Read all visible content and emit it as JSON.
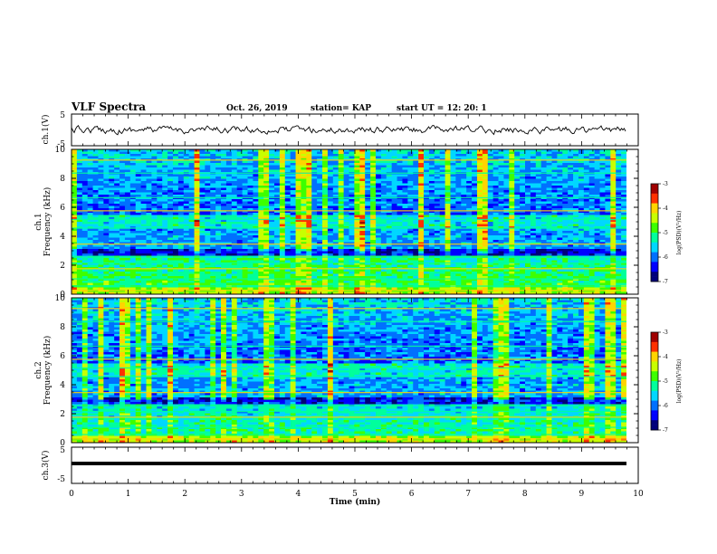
{
  "header": {
    "title": "VLF Spectra",
    "date": "Oct. 26, 2019",
    "station": "station= KAP",
    "start": "start  UT  =   12: 20: 1"
  },
  "colors": {
    "colormap": [
      "#00007a",
      "#0000ff",
      "#0070ff",
      "#00d7ff",
      "#00ff9c",
      "#3cff00",
      "#c8ff00",
      "#ffd400",
      "#ff3000",
      "#a00000"
    ],
    "trace": "#000000"
  },
  "chart_data": [
    {
      "type": "line",
      "name": "ch1-waveform",
      "ylabel": "ch.1(V)",
      "ylim": [
        -5,
        5
      ],
      "yticks": [
        "5",
        "-5"
      ],
      "xlim": [
        0,
        9.8
      ],
      "note_values": "waveform amplitude roughly within ±1.5 V, noisy"
    },
    {
      "type": "heatmap",
      "name": "ch1-spectrogram",
      "ylabel_top": "ch.1",
      "ylabel": "Frequency  (kHz)",
      "ylim": [
        0,
        10
      ],
      "yticks": [
        "0",
        "2",
        "4",
        "6",
        "8",
        "10"
      ],
      "xlim": [
        0,
        9.8
      ],
      "colorbar": {
        "label": "log(PSD)(V²/Hz)",
        "range": [
          -7,
          -3
        ],
        "ticks": [
          "-3",
          "-4",
          "-5",
          "-6",
          "-7"
        ]
      }
    },
    {
      "type": "heatmap",
      "name": "ch2-spectrogram",
      "ylabel_top": "ch.2",
      "ylabel": "Frequency  (kHz)",
      "ylim": [
        0,
        10
      ],
      "yticks": [
        "0",
        "2",
        "4",
        "6",
        "8",
        "10"
      ],
      "xlim": [
        0,
        9.8
      ],
      "colorbar": {
        "label": "log(PSD)(V²/Hz)",
        "range": [
          -7,
          -3
        ],
        "ticks": [
          "-3",
          "-4",
          "-5",
          "-6",
          "-7"
        ]
      }
    },
    {
      "type": "line",
      "name": "ch3-waveform",
      "ylabel": "ch.3(V)",
      "ylim": [
        -5,
        5
      ],
      "yticks": [
        "5",
        "-5"
      ],
      "xlim": [
        0,
        9.8
      ],
      "note_values": "flat trace at about -1 V"
    }
  ],
  "xaxis": {
    "label": "Time  (min)",
    "ticks": [
      "0",
      "1",
      "2",
      "3",
      "4",
      "5",
      "6",
      "7",
      "8",
      "9",
      "10"
    ],
    "range": [
      0,
      10
    ]
  }
}
